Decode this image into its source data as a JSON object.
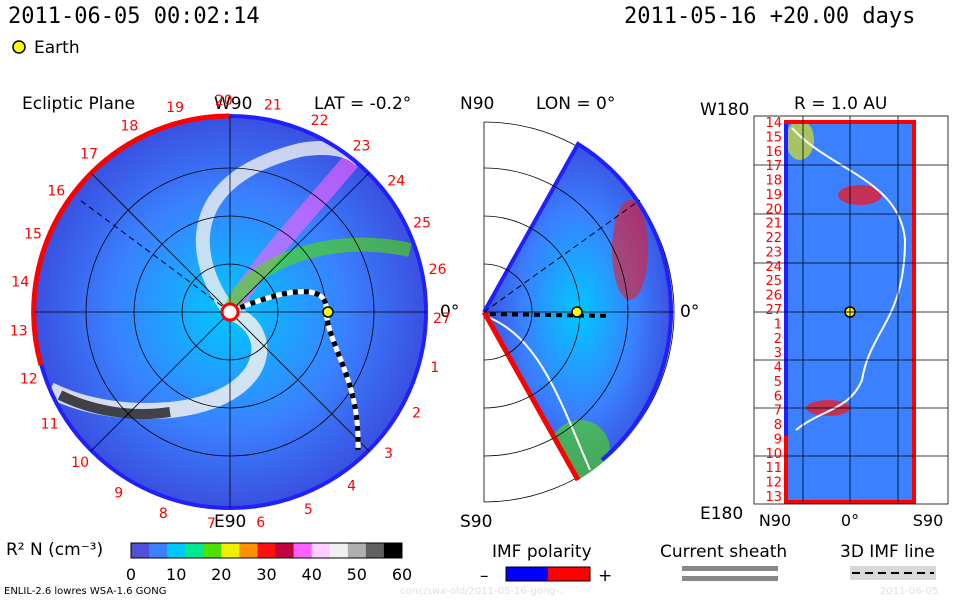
{
  "header": {
    "datetime_left": "2011-06-05 00:02:14",
    "datetime_right": "2011-05-16 +20.00 days",
    "legend_earth": "Earth"
  },
  "panel_ecliptic": {
    "title": "Ecliptic Plane",
    "lat_label": "LAT = -0.2°",
    "top_label": "W90",
    "bottom_label": "E90",
    "right_label": "0°",
    "rim_numbers": [
      "19",
      "20",
      "21",
      "22",
      "23",
      "24",
      "25",
      "26",
      "27",
      "1",
      "2",
      "3",
      "4",
      "5",
      "6",
      "7",
      "8",
      "9",
      "10",
      "11",
      "12",
      "13",
      "14",
      "15",
      "16",
      "17",
      "18"
    ]
  },
  "panel_meridional": {
    "top_left": "N90",
    "lon_label": "LON = 0°",
    "bottom_left": "S90",
    "right_label": "0°"
  },
  "panel_radius": {
    "title": "R = 1.0 AU",
    "top_left": "W180",
    "bottom_left": "E180",
    "x_labels": [
      "N90",
      "0°",
      "S90"
    ],
    "y_labels": [
      "14",
      "15",
      "16",
      "17",
      "18",
      "19",
      "20",
      "21",
      "22",
      "23",
      "24",
      "25",
      "26",
      "27",
      "1",
      "2",
      "3",
      "4",
      "5",
      "6",
      "7",
      "8",
      "9",
      "10",
      "11",
      "12",
      "13"
    ]
  },
  "colorbar": {
    "label": "R² N (cm⁻³)",
    "ticks": [
      "0",
      "10",
      "20",
      "30",
      "40",
      "50",
      "60"
    ],
    "stops": [
      "#5050d8",
      "#3a80ff",
      "#00c8ff",
      "#00e890",
      "#50e000",
      "#f0f000",
      "#ff9000",
      "#ff1010",
      "#c00040",
      "#ff60ff",
      "#ffd0ff",
      "#f0f0f0",
      "#b0b0b0",
      "#606060",
      "#000000"
    ]
  },
  "imf_legend": {
    "title": "IMF polarity",
    "minus": "–",
    "plus": "+",
    "negative_color": "#0000ff",
    "positive_color": "#ff0000"
  },
  "sheath_legend": {
    "title": "Current sheath"
  },
  "imf_line_legend": {
    "title": "3D IMF line"
  },
  "footer": {
    "model_info": "ENLIL-2.6 lowres WSA-1.6 GONG",
    "run_id": "conc/swx-old/2011-05-16-gong-..",
    "date_right": "2011-06-05"
  }
}
